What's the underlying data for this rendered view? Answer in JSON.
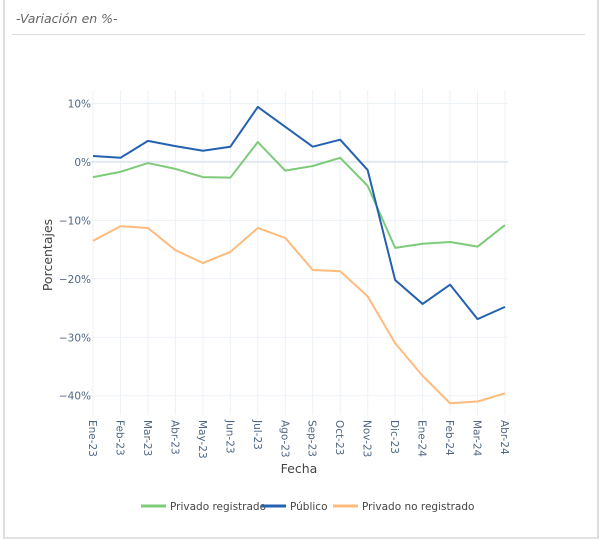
{
  "header": {
    "subtitle": "-Variación en %-"
  },
  "chart_data": {
    "type": "line",
    "xlabel": "Fecha",
    "ylabel": "Porcentajes",
    "categories": [
      "Ene-23",
      "Feb-23",
      "Mar-23",
      "Abr-23",
      "May-23",
      "Jun-23",
      "Jul-23",
      "Ago-23",
      "Sep-23",
      "Oct-23",
      "Nov-23",
      "Dic-23",
      "Ene-24",
      "Feb-24",
      "Mar-24",
      "Abr-24"
    ],
    "ylim": [
      -43.3,
      12.3
    ],
    "yticks": [
      10,
      0,
      -10,
      -20,
      -30,
      -40
    ],
    "ytick_labels": [
      "10%",
      "0%",
      "−10%",
      "−20%",
      "−30%",
      "−40%"
    ],
    "grid": true,
    "legend_position": "bottom",
    "series": [
      {
        "name": "Privado registrado",
        "color": "#7dcb79",
        "values": [
          -2.6,
          -1.7,
          -0.2,
          -1.2,
          -2.6,
          -2.7,
          3.4,
          -1.5,
          -0.7,
          0.7,
          -4.1,
          -14.7,
          -14.0,
          -13.7,
          -14.5,
          -10.8
        ]
      },
      {
        "name": "Público",
        "color": "#2461b0",
        "values": [
          1.0,
          0.7,
          3.6,
          2.7,
          1.9,
          2.6,
          9.4,
          6.0,
          2.6,
          3.8,
          -1.4,
          -20.2,
          -24.3,
          -21.0,
          -26.9,
          -24.8
        ]
      },
      {
        "name": "Privado no registrado",
        "color": "#ffbb7d",
        "values": [
          -13.5,
          -11.0,
          -11.3,
          -15.1,
          -17.3,
          -15.4,
          -11.3,
          -13.0,
          -18.5,
          -18.7,
          -23.0,
          -31.0,
          -36.6,
          -41.3,
          -41.0,
          -39.6
        ]
      }
    ]
  }
}
